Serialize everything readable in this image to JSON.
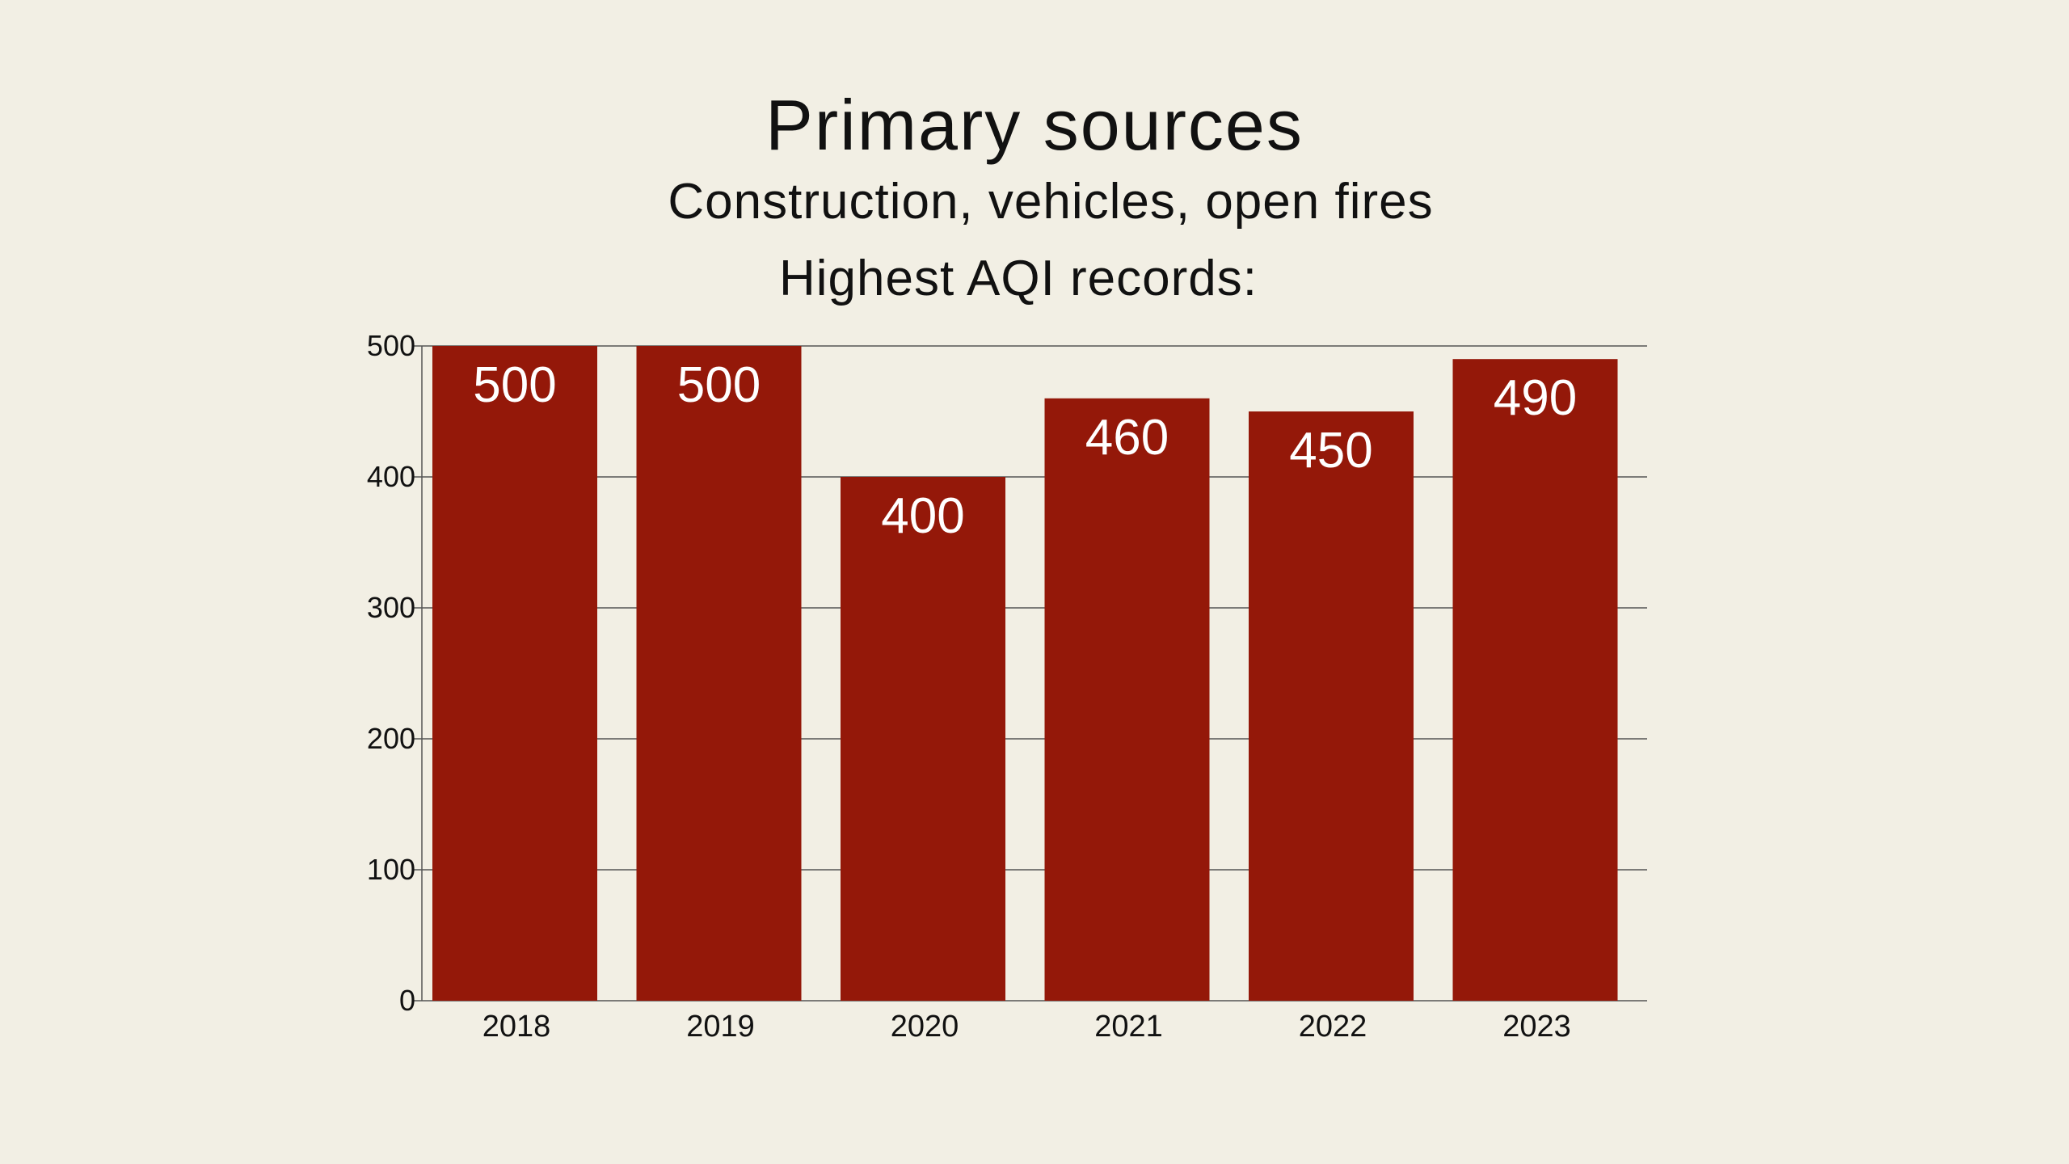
{
  "header": {
    "title": "Primary sources",
    "subtitle": "Construction, vehicles, open fires",
    "caption": "Highest AQI records:"
  },
  "colors": {
    "background": "#f2efe4",
    "bar": "#941809",
    "grid": "#555555",
    "label": "#ffffff"
  },
  "chart_data": {
    "type": "bar",
    "categories": [
      "2018",
      "2019",
      "2020",
      "2021",
      "2022",
      "2023"
    ],
    "values": [
      500,
      500,
      400,
      460,
      450,
      490
    ],
    "data_labels": [
      "500",
      "500",
      "400",
      "460",
      "450",
      "490"
    ],
    "yticks": [
      0,
      100,
      200,
      300,
      400,
      500
    ],
    "ylim": [
      0,
      500
    ],
    "grid": true,
    "legend": "none"
  }
}
